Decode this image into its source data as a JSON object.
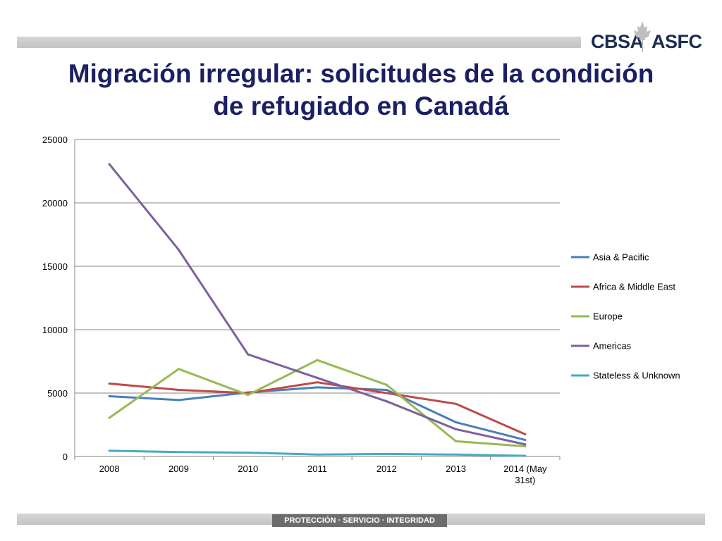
{
  "header": {
    "logo_left": "CBSA",
    "logo_right": "ASFC"
  },
  "title": {
    "line1": "Migración irregular: solicitudes de la condición",
    "line2": "de refugiado en Canadá"
  },
  "footer": {
    "motto": "PROTECCIÓN · SERVICIO · INTEGRIDAD"
  },
  "colors": {
    "title": "#1b2064",
    "logo": "#1c2d52",
    "gridline": "#868686"
  },
  "chart_data": {
    "type": "line",
    "categories": [
      "2008",
      "2009",
      "2010",
      "2011",
      "2012",
      "2013",
      "2014 (May 31st)"
    ],
    "y_ticks": [
      0,
      5000,
      10000,
      15000,
      20000,
      25000
    ],
    "ylim": [
      0,
      25000
    ],
    "grid": true,
    "legend_position": "right",
    "series": [
      {
        "name": "Asia & Pacific",
        "color": "#4a7ebb",
        "values": [
          4750,
          4450,
          5050,
          5450,
          5250,
          2700,
          1300
        ]
      },
      {
        "name": "Africa & Middle East",
        "color": "#be4b48",
        "values": [
          5750,
          5250,
          5000,
          5850,
          5000,
          4150,
          1750
        ]
      },
      {
        "name": "Europe",
        "color": "#98b954",
        "values": [
          3050,
          6900,
          4850,
          7600,
          5650,
          1200,
          800
        ]
      },
      {
        "name": "Americas",
        "color": "#7d60a0",
        "values": [
          23050,
          16300,
          8050,
          6200,
          4350,
          2150,
          950
        ]
      },
      {
        "name": "Stateless & Unknown",
        "color": "#46aac5",
        "values": [
          450,
          350,
          300,
          150,
          200,
          150,
          50
        ]
      }
    ]
  }
}
